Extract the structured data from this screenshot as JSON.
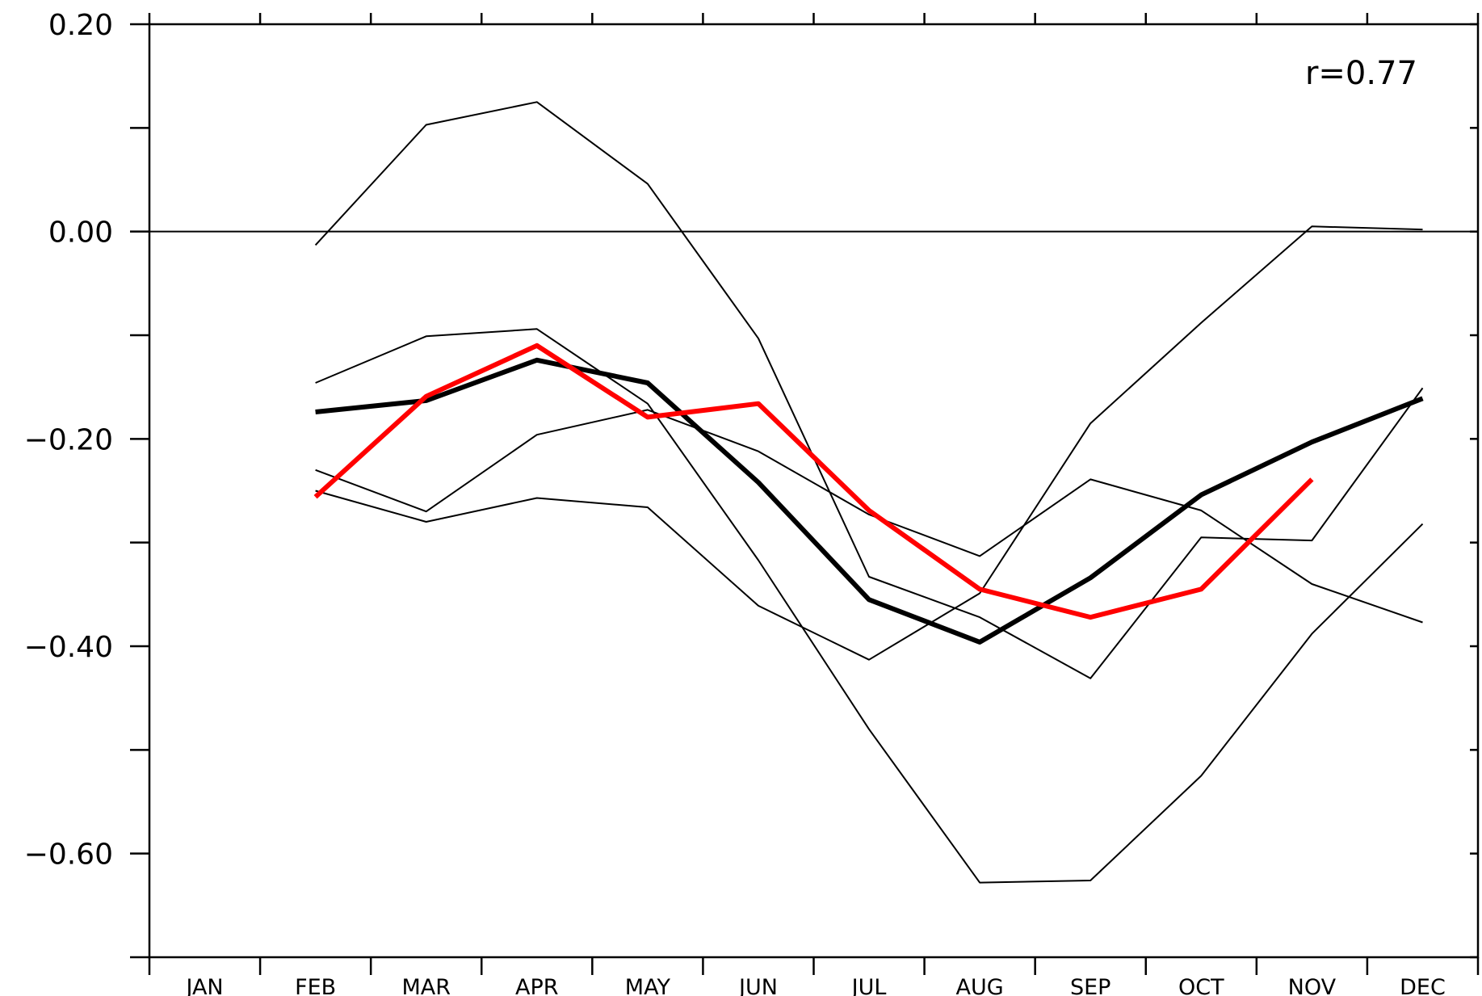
{
  "chart_data": {
    "type": "line",
    "categories": [
      "JAN",
      "FEB",
      "MAR",
      "APR",
      "MAY",
      "JUN",
      "JUL",
      "AUG",
      "SEP",
      "OCT",
      "NOV",
      "DEC"
    ],
    "ylim": [
      -0.7,
      0.2
    ],
    "y_tick_labels": [
      "0.20",
      "0.00",
      "−0.20",
      "−0.40",
      "−0.60"
    ],
    "y_tick_values": [
      0.2,
      0.0,
      -0.2,
      -0.4,
      -0.6
    ],
    "y_minor_tick_values": [
      0.1,
      -0.1,
      -0.3,
      -0.5,
      -0.7
    ],
    "reference_line": 0.0,
    "annotation": "r=0.77",
    "grid": false,
    "series": [
      {
        "color": "#000000",
        "style": "thin",
        "values": [
          null,
          -0.013,
          0.103,
          0.125,
          0.046,
          -0.103,
          -0.333,
          -0.372,
          -0.431,
          -0.295,
          -0.298,
          -0.151
        ]
      },
      {
        "color": "#000000",
        "style": "thin",
        "values": [
          null,
          -0.146,
          -0.101,
          -0.094,
          -0.166,
          -0.317,
          -0.48,
          -0.628,
          -0.626,
          -0.525,
          -0.388,
          -0.282
        ]
      },
      {
        "color": "#000000",
        "style": "thin",
        "values": [
          null,
          -0.23,
          -0.27,
          -0.196,
          -0.172,
          -0.212,
          -0.273,
          -0.313,
          -0.239,
          -0.269,
          -0.34,
          -0.377
        ]
      },
      {
        "color": "#000000",
        "style": "thin",
        "values": [
          null,
          -0.25,
          -0.28,
          -0.257,
          -0.266,
          -0.361,
          -0.413,
          -0.349,
          -0.185,
          -0.088,
          0.005,
          0.002
        ]
      },
      {
        "color": "#000000",
        "style": "thick",
        "values": [
          null,
          -0.174,
          -0.163,
          -0.124,
          -0.146,
          -0.242,
          -0.355,
          -0.396,
          -0.334,
          -0.254,
          -0.203,
          -0.161
        ]
      },
      {
        "color": "#ff0000",
        "style": "thick",
        "values": [
          null,
          -0.256,
          -0.159,
          -0.11,
          -0.179,
          -0.166,
          -0.269,
          -0.345,
          -0.372,
          -0.345,
          -0.239,
          null
        ]
      }
    ]
  }
}
